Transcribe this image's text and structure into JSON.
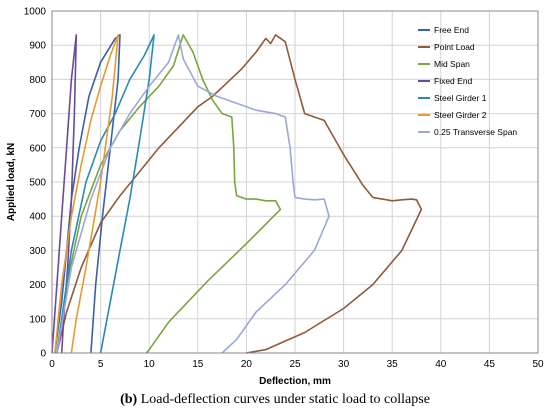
{
  "caption": {
    "prefix": "(b)",
    "text": " Load-deflection curves under static load to collapse"
  },
  "chart_data": {
    "type": "line",
    "title": "",
    "xlabel": "Deflection, mm",
    "ylabel": "Applied load, kN",
    "xlim": [
      0,
      50
    ],
    "ylim": [
      0,
      1000
    ],
    "xticks": [
      0,
      5,
      10,
      15,
      20,
      25,
      30,
      35,
      40,
      45,
      50
    ],
    "yticks": [
      0,
      100,
      200,
      300,
      400,
      500,
      600,
      700,
      800,
      900,
      1000
    ],
    "grid": true,
    "legend_position": "top-right",
    "series": [
      {
        "name": "Free End",
        "color": "#3a5fa8",
        "points": [
          [
            0.3,
            0
          ],
          [
            1.0,
            150
          ],
          [
            1.5,
            300
          ],
          [
            2.0,
            450
          ],
          [
            2.8,
            600
          ],
          [
            3.8,
            750
          ],
          [
            5.0,
            850
          ],
          [
            6.5,
            920
          ],
          [
            7.0,
            930
          ],
          [
            6.8,
            800
          ],
          [
            6.0,
            600
          ],
          [
            5.2,
            400
          ],
          [
            4.5,
            200
          ],
          [
            4.0,
            0
          ]
        ]
      },
      {
        "name": "Point Load",
        "color": "#8e5a3c",
        "points": [
          [
            0.5,
            0
          ],
          [
            1.5,
            120
          ],
          [
            3,
            250
          ],
          [
            5,
            380
          ],
          [
            7,
            460
          ],
          [
            9,
            530
          ],
          [
            11,
            600
          ],
          [
            13,
            660
          ],
          [
            15,
            720
          ],
          [
            16.5,
            750
          ],
          [
            18,
            790
          ],
          [
            19.5,
            830
          ],
          [
            21,
            880
          ],
          [
            22,
            920
          ],
          [
            22.5,
            905
          ],
          [
            23,
            930
          ],
          [
            24,
            910
          ],
          [
            25,
            800
          ],
          [
            26,
            700
          ],
          [
            27,
            690
          ],
          [
            28,
            680
          ],
          [
            30,
            580
          ],
          [
            32,
            490
          ],
          [
            33,
            455
          ],
          [
            34,
            450
          ],
          [
            35,
            445
          ],
          [
            36,
            448
          ],
          [
            37,
            450
          ],
          [
            37.5,
            448
          ],
          [
            38,
            420
          ],
          [
            36,
            300
          ],
          [
            33,
            200
          ],
          [
            30,
            130
          ],
          [
            26,
            60
          ],
          [
            22,
            10
          ],
          [
            20,
            0
          ]
        ]
      },
      {
        "name": "Mid Span",
        "color": "#7aa43e",
        "points": [
          [
            0.5,
            0
          ],
          [
            1.5,
            200
          ],
          [
            3,
            400
          ],
          [
            5,
            550
          ],
          [
            7,
            650
          ],
          [
            9,
            720
          ],
          [
            11,
            780
          ],
          [
            12.5,
            840
          ],
          [
            13.5,
            930
          ],
          [
            14.5,
            880
          ],
          [
            15.5,
            800
          ],
          [
            16.5,
            740
          ],
          [
            17.5,
            700
          ],
          [
            18.5,
            690
          ],
          [
            18.7,
            600
          ],
          [
            18.8,
            500
          ],
          [
            19,
            460
          ],
          [
            20,
            450
          ],
          [
            21,
            450
          ],
          [
            22,
            445
          ],
          [
            23,
            445
          ],
          [
            23.5,
            420
          ],
          [
            20,
            320
          ],
          [
            16,
            210
          ],
          [
            12,
            90
          ],
          [
            10,
            10
          ],
          [
            9.7,
            0
          ]
        ]
      },
      {
        "name": "Fixed End",
        "color": "#6a4a9a",
        "points": [
          [
            0,
            0
          ],
          [
            0.5,
            200
          ],
          [
            1,
            400
          ],
          [
            1.5,
            600
          ],
          [
            2,
            800
          ],
          [
            2.5,
            930
          ],
          [
            2.3,
            700
          ],
          [
            2,
            450
          ],
          [
            1.6,
            250
          ],
          [
            1.2,
            100
          ],
          [
            1.0,
            0
          ]
        ]
      },
      {
        "name": "Steel Girder 1",
        "color": "#2a8ab4",
        "points": [
          [
            0.5,
            0
          ],
          [
            2,
            300
          ],
          [
            3.5,
            500
          ],
          [
            5,
            620
          ],
          [
            6.5,
            700
          ],
          [
            8,
            800
          ],
          [
            9.5,
            870
          ],
          [
            10.5,
            930
          ],
          [
            10,
            800
          ],
          [
            9,
            620
          ],
          [
            8,
            450
          ],
          [
            7,
            300
          ],
          [
            6,
            150
          ],
          [
            5,
            0
          ]
        ]
      },
      {
        "name": "Steel Girder 2",
        "color": "#e39a33",
        "points": [
          [
            0.3,
            0
          ],
          [
            1,
            200
          ],
          [
            2,
            400
          ],
          [
            3,
            550
          ],
          [
            4,
            680
          ],
          [
            5,
            780
          ],
          [
            6,
            870
          ],
          [
            6.8,
            930
          ],
          [
            6.2,
            750
          ],
          [
            5,
            500
          ],
          [
            3.5,
            250
          ],
          [
            2.5,
            100
          ],
          [
            2,
            0
          ]
        ]
      },
      {
        "name": "0.25 Transverse Span",
        "color": "#9aa8d8",
        "points": [
          [
            0.5,
            0
          ],
          [
            2,
            250
          ],
          [
            4,
            450
          ],
          [
            6,
            600
          ],
          [
            8,
            700
          ],
          [
            10,
            780
          ],
          [
            12,
            850
          ],
          [
            13,
            930
          ],
          [
            13.5,
            860
          ],
          [
            15,
            780
          ],
          [
            17,
            750
          ],
          [
            19,
            730
          ],
          [
            21,
            710
          ],
          [
            23,
            700
          ],
          [
            24,
            690
          ],
          [
            24.5,
            600
          ],
          [
            24.8,
            500
          ],
          [
            25,
            455
          ],
          [
            26,
            450
          ],
          [
            27,
            448
          ],
          [
            28,
            450
          ],
          [
            28.5,
            400
          ],
          [
            27,
            300
          ],
          [
            24,
            200
          ],
          [
            21,
            120
          ],
          [
            19,
            40
          ],
          [
            17.5,
            0
          ]
        ]
      }
    ]
  }
}
